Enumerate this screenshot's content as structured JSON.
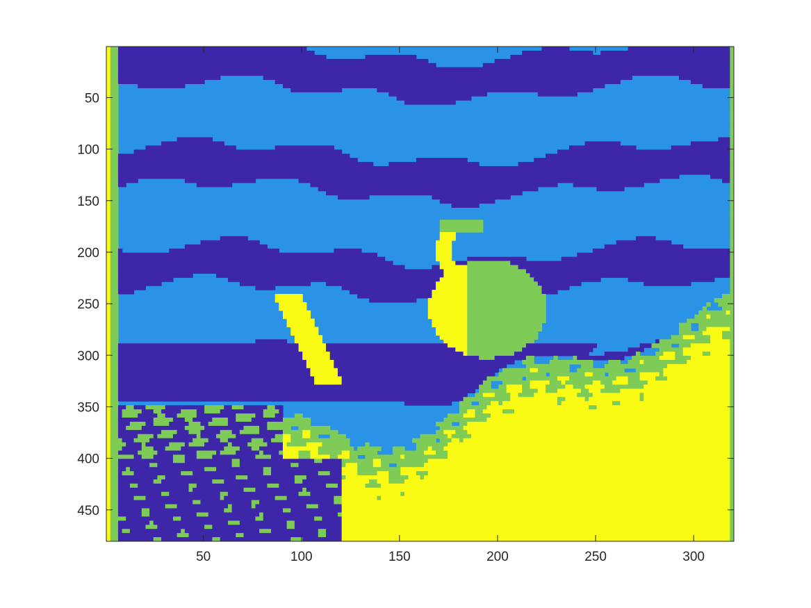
{
  "chart_data": {
    "type": "heatmap",
    "title": "",
    "xlabel": "",
    "ylabel": "",
    "xlim": [
      0.5,
      320.5
    ],
    "ylim": [
      0.5,
      480.5
    ],
    "y_direction": "reverse",
    "grid": false,
    "colormap": "parula",
    "cluster_levels": 4,
    "cluster_colors": [
      "#3e26a8",
      "#2b93e6",
      "#7fcb57",
      "#f9fb15"
    ],
    "xticks": [
      50,
      100,
      150,
      200,
      250,
      300
    ],
    "yticks": [
      50,
      100,
      150,
      200,
      250,
      300,
      350,
      400,
      450
    ],
    "xtick_labels": [
      "50",
      "100",
      "150",
      "200",
      "250",
      "300"
    ],
    "ytick_labels": [
      "50",
      "100",
      "150",
      "200",
      "250",
      "300",
      "350",
      "400",
      "450"
    ]
  }
}
